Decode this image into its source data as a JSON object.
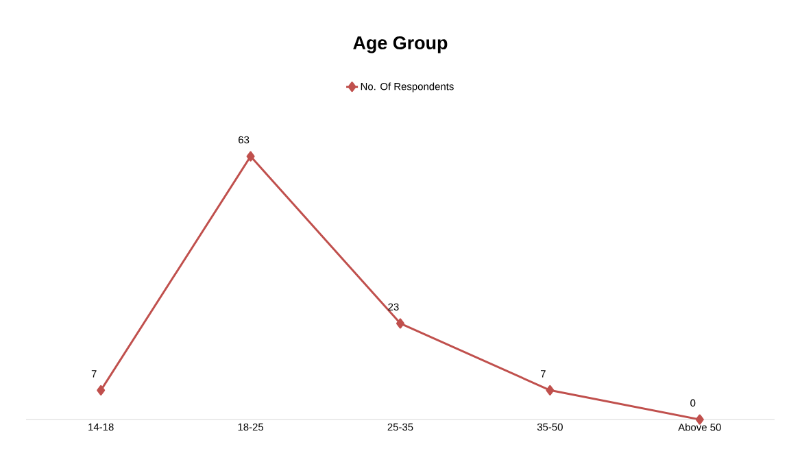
{
  "chart_data": {
    "type": "line",
    "title": "Age Group",
    "categories": [
      "14-18",
      "18-25",
      "25-35",
      "35-50",
      "Above 50"
    ],
    "series": [
      {
        "name": "No. Of Respondents",
        "color": "#c0504d",
        "values": [
          7,
          63,
          23,
          7,
          0
        ]
      }
    ],
    "data_labels": true,
    "legend": "top",
    "marker": "diamond"
  }
}
